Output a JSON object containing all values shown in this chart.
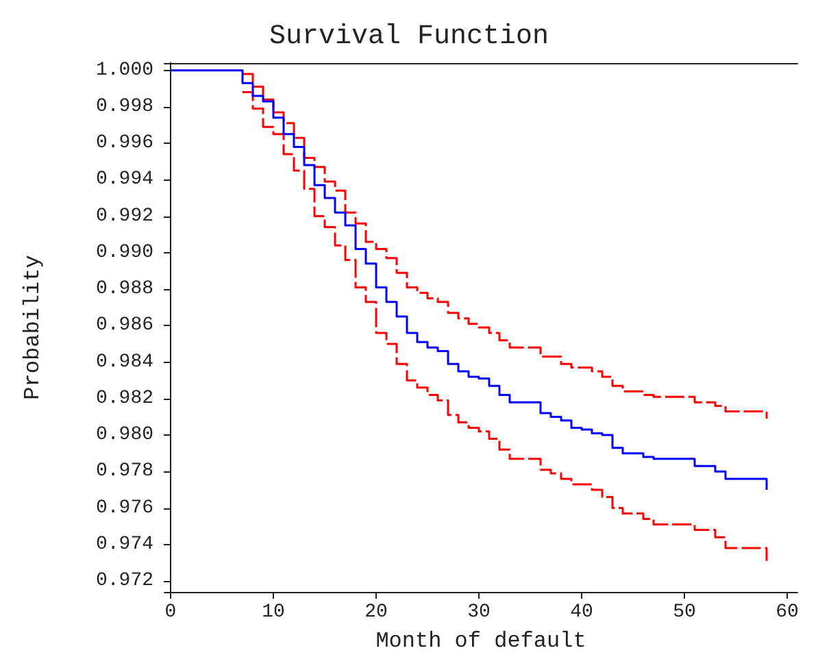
{
  "chart_data": {
    "type": "step",
    "title": "Survival Function",
    "xlabel": "Month of default",
    "ylabel": "Probability",
    "xlim": [
      -0.6,
      61
    ],
    "xticks": [
      0,
      10,
      20,
      30,
      40,
      50,
      60
    ],
    "ylim": [
      0.9714,
      1.0004
    ],
    "yticks": [
      0.972,
      0.974,
      0.976,
      0.978,
      {
        "value": 0.98,
        "label": "0.980"
      },
      0.982,
      0.984,
      0.986,
      0.988,
      {
        "value": 0.99,
        "label": "0.990"
      },
      0.992,
      0.994,
      0.996,
      0.998,
      {
        "value": 1,
        "label": "1.000"
      }
    ],
    "grid": false,
    "marker": "none",
    "series": [
      {
        "color": "#ff0000",
        "line_style": "dashed",
        "x": [
          7,
          8,
          9,
          10,
          11,
          12,
          13,
          14,
          15,
          16,
          17,
          18,
          19,
          20,
          21,
          22,
          23,
          24,
          25,
          26,
          27,
          28,
          29,
          30,
          31,
          32,
          33,
          36,
          38,
          39,
          41,
          42,
          43,
          44,
          46,
          47,
          51,
          53,
          54,
          58
        ],
        "values": [
          0.9998,
          0.9991,
          0.9984,
          0.9977,
          0.9971,
          0.9963,
          0.9952,
          0.9947,
          0.9939,
          0.9934,
          0.9922,
          0.9916,
          0.9906,
          0.9902,
          0.9897,
          0.9889,
          0.9881,
          0.9878,
          0.9875,
          0.9873,
          0.9867,
          0.9864,
          0.9861,
          0.9859,
          0.9856,
          0.9852,
          0.9848,
          0.9843,
          0.9839,
          0.9837,
          0.9835,
          0.9832,
          0.9827,
          0.9824,
          0.9822,
          0.9821,
          0.9818,
          0.9816,
          0.9813,
          0.9809
        ]
      },
      {
        "color": "#ff0000",
        "line_style": "dashed",
        "x": [
          7,
          8,
          9,
          10,
          11,
          12,
          13,
          14,
          15,
          16,
          17,
          18,
          19,
          20,
          21,
          22,
          23,
          24,
          25,
          26,
          27,
          28,
          29,
          30,
          31,
          32,
          33,
          36,
          37,
          38,
          39,
          41,
          42,
          43,
          44,
          46,
          47,
          51,
          53,
          54,
          58
        ],
        "values": [
          0.9988,
          0.9979,
          0.9969,
          0.9965,
          0.9954,
          0.9945,
          0.9935,
          0.992,
          0.9914,
          0.9904,
          0.9896,
          0.9881,
          0.9873,
          0.9856,
          0.985,
          0.9839,
          0.983,
          0.9826,
          0.9822,
          0.9819,
          0.9811,
          0.9807,
          0.9804,
          0.9802,
          0.9798,
          0.9792,
          0.9787,
          0.9781,
          0.9779,
          0.9776,
          0.9773,
          0.977,
          0.9766,
          0.976,
          0.9757,
          0.9754,
          0.9751,
          0.9748,
          0.9744,
          0.9738,
          0.9731
        ]
      },
      {
        "color": "#0000ff",
        "line_style": "solid",
        "x": [
          0,
          7,
          8,
          9,
          10,
          11,
          12,
          13,
          14,
          15,
          16,
          17,
          18,
          19,
          20,
          21,
          22,
          23,
          24,
          25,
          26,
          27,
          28,
          29,
          30,
          31,
          32,
          33,
          36,
          37,
          38,
          39,
          40,
          41,
          42,
          43,
          44,
          46,
          47,
          51,
          53,
          54,
          58
        ],
        "values": [
          1,
          0.9993,
          0.9986,
          0.9983,
          0.9974,
          0.9965,
          0.9958,
          0.9948,
          0.9937,
          0.993,
          0.9922,
          0.9915,
          0.9902,
          0.9894,
          0.9881,
          0.9873,
          0.9865,
          0.9856,
          0.9851,
          0.9848,
          0.9846,
          0.9839,
          0.9835,
          0.9832,
          0.9831,
          0.9827,
          0.9822,
          0.9818,
          0.9812,
          0.981,
          0.9808,
          0.9804,
          0.9803,
          0.9801,
          0.98,
          0.9793,
          0.979,
          0.9788,
          0.9787,
          0.9783,
          0.978,
          0.9776,
          0.977
        ]
      }
    ]
  }
}
